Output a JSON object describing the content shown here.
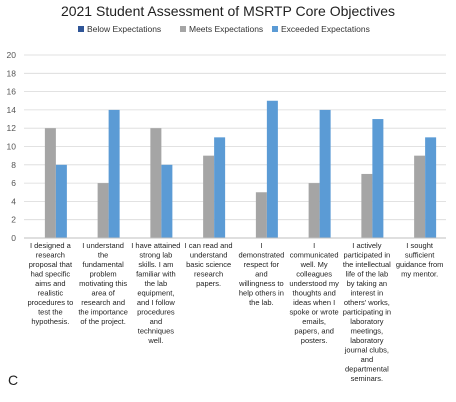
{
  "colors": {
    "Below Expectations": "#2f5597",
    "Meets Expectations": "#a5a5a5",
    "Exceeded Expectations": "#5b9bd5",
    "grid": "#d9d9d9",
    "axis": "#bfbfbf"
  },
  "chart_data": {
    "type": "bar",
    "title": "2021 Student Assessment of MSRTP Core Objectives",
    "panel_label": "C",
    "legend_position": "top",
    "grid": true,
    "ylim": [
      0,
      20
    ],
    "yticks": [
      0,
      2,
      4,
      6,
      8,
      10,
      12,
      14,
      16,
      18,
      20
    ],
    "categories": [
      [
        "I designed a",
        "research",
        "proposal that",
        "had specific",
        "aims and",
        "realistic",
        "procedures to",
        "test the",
        "hypothesis."
      ],
      [
        "I understand",
        "the",
        "fundamental",
        "problem",
        "motivating this",
        "area of",
        "research and",
        "the importance",
        "of the project."
      ],
      [
        "I have attained",
        "strong lab",
        "skills. I am",
        "familiar with",
        "the lab",
        "equipment,",
        "and I follow",
        "procedures",
        "and",
        "techniques",
        "well."
      ],
      [
        "I can read and",
        "understand",
        "basic science",
        "research",
        "papers."
      ],
      [
        "I",
        "demonstrated",
        "respect for",
        "and",
        "willingness to",
        "help others in",
        "the lab."
      ],
      [
        "I",
        "communicated",
        "well. My",
        "colleagues",
        "understood my",
        "thoughts and",
        "ideas when I",
        "spoke or wrote",
        "emails,",
        "papers, and",
        "posters."
      ],
      [
        "I actively",
        "participated in",
        "the intellectual",
        "life of the lab",
        "by taking an",
        "interest in",
        "others' works,",
        "participating in",
        "laboratory",
        "meetings,",
        "laboratory",
        "journal clubs,",
        "and",
        "departmental",
        "seminars."
      ],
      [
        "I sought",
        "sufficient",
        "guidance from",
        "my mentor."
      ]
    ],
    "series": [
      {
        "name": "Below Expectations",
        "values": [
          0,
          0,
          0,
          0,
          0,
          0,
          0,
          0
        ]
      },
      {
        "name": "Meets Expectations",
        "values": [
          12,
          6,
          12,
          9,
          5,
          6,
          7,
          9
        ]
      },
      {
        "name": "Exceeded Expectations",
        "values": [
          8,
          14,
          8,
          11,
          15,
          14,
          13,
          11
        ]
      }
    ]
  }
}
